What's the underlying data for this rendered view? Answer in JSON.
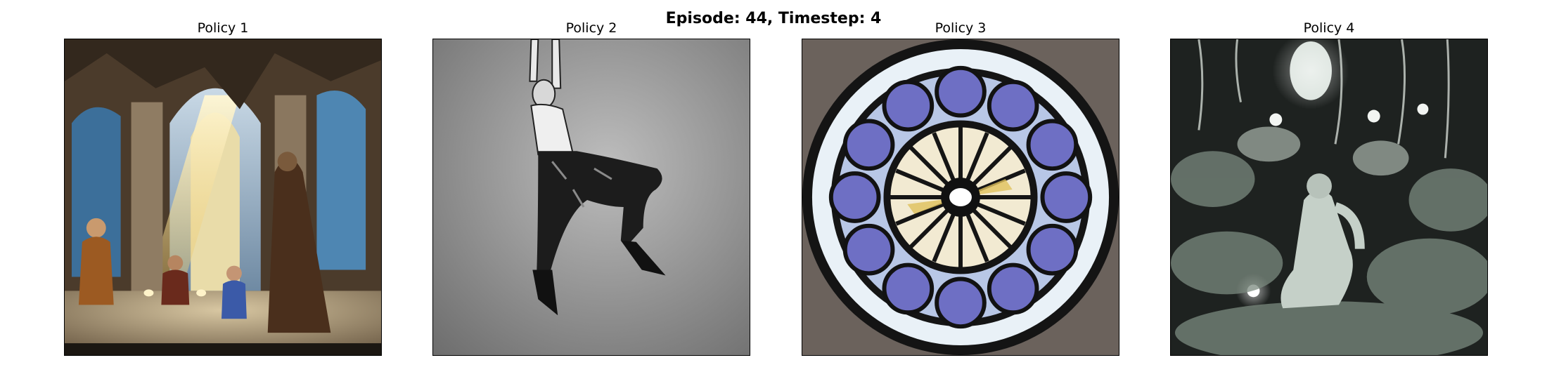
{
  "figure": {
    "title": "Episode: 44, Timestep: 4"
  },
  "panels": [
    {
      "title": "Policy 1",
      "image": "cathedral-light-scene-image"
    },
    {
      "title": "Policy 2",
      "image": "hanging-figure-sketch-image"
    },
    {
      "title": "Policy 3",
      "image": "rose-stained-glass-window-image"
    },
    {
      "title": "Policy 4",
      "image": "night-garden-figure-image"
    }
  ],
  "colors": {
    "background": "#ffffff",
    "frame": "#000000"
  }
}
